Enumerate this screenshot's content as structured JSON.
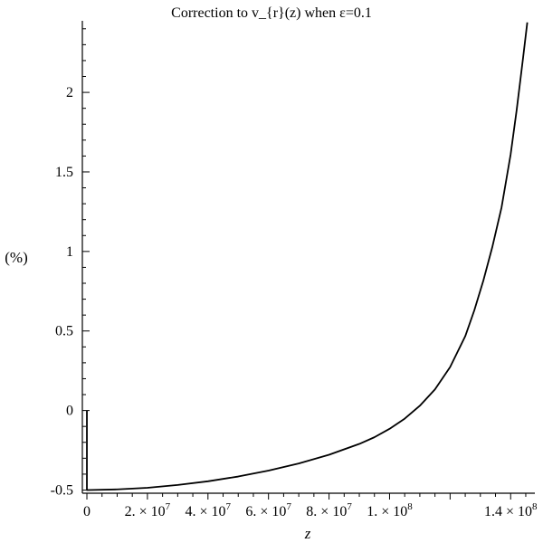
{
  "chart_data": {
    "type": "line",
    "title": "Correction to v_{r}(z) when ε=0.1",
    "xlabel": "z",
    "ylabel": "(%)",
    "xlim": [
      -1500000,
      148000000
    ],
    "ylim": [
      -0.52,
      2.45
    ],
    "grid": false,
    "x_ticks": [
      {
        "value": 0,
        "label": "0",
        "exp": ""
      },
      {
        "value": 20000000,
        "label": "2. × 10",
        "exp": "7"
      },
      {
        "value": 40000000,
        "label": "4. × 10",
        "exp": "7"
      },
      {
        "value": 60000000,
        "label": "6. × 10",
        "exp": "7"
      },
      {
        "value": 80000000,
        "label": "8. × 10",
        "exp": "7"
      },
      {
        "value": 100000000,
        "label": "1. × 10",
        "exp": "8"
      },
      {
        "value": 120000000,
        "label": "",
        "exp": ""
      },
      {
        "value": 140000000,
        "label": "1.4 × 10",
        "exp": "8"
      }
    ],
    "y_ticks": [
      {
        "value": -0.5,
        "label": "-0.5"
      },
      {
        "value": 0,
        "label": "0"
      },
      {
        "value": 0.5,
        "label": "0.5"
      },
      {
        "value": 1,
        "label": "1"
      },
      {
        "value": 1.5,
        "label": "1.5"
      },
      {
        "value": 2,
        "label": "2"
      }
    ],
    "series": [
      {
        "color": "#000000",
        "x": [
          0,
          0,
          10000000,
          20000000,
          30000000,
          40000000,
          50000000,
          60000000,
          70000000,
          80000000,
          90000000,
          95000000,
          100000000,
          105000000,
          110000000,
          115000000,
          120000000,
          125000000,
          128000000,
          131000000,
          134000000,
          137000000,
          140000000,
          142000000,
          144000000,
          145500000
        ],
        "y": [
          0,
          -0.5,
          -0.496,
          -0.486,
          -0.468,
          -0.445,
          -0.415,
          -0.378,
          -0.333,
          -0.278,
          -0.21,
          -0.168,
          -0.115,
          -0.051,
          0.03,
          0.133,
          0.273,
          0.467,
          0.63,
          0.818,
          1.032,
          1.277,
          1.61,
          1.89,
          2.2,
          2.44
        ]
      }
    ]
  }
}
